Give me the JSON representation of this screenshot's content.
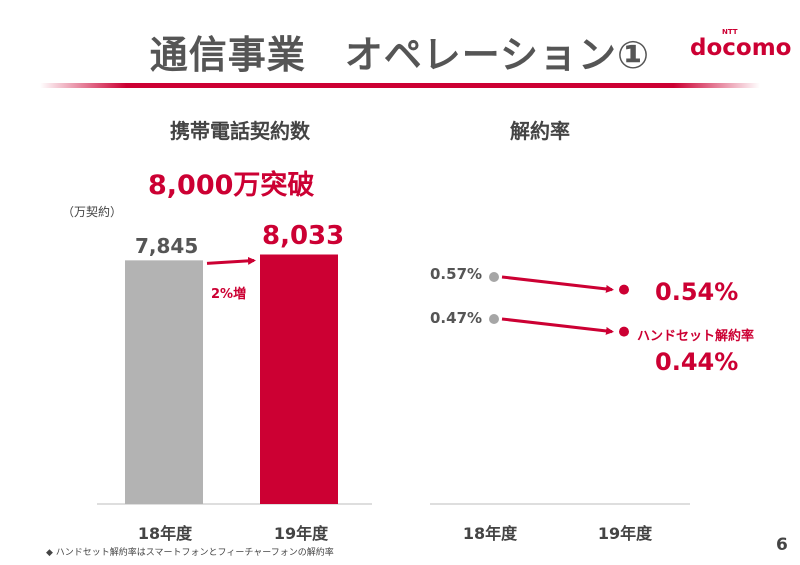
{
  "header": {
    "title": "通信事業　オペレーション①",
    "logo_brand": "docomo",
    "logo_ntt": "NTT"
  },
  "colors": {
    "accent": "#cc0033",
    "gray_bar": "#b3b3b3",
    "gray_dot": "#a6a6a6"
  },
  "left_panel": {
    "title": "携帯電話契約数",
    "highlight": "8,000万突破",
    "unit": "（万契約）",
    "growth_label": "2%増"
  },
  "right_panel": {
    "title": "解約率",
    "handset_series_label": "ハンドセット解約率"
  },
  "chart_data": [
    {
      "type": "bar",
      "title": "携帯電話契約数",
      "categories": [
        "18年度",
        "19年度"
      ],
      "values": [
        7845,
        8033
      ],
      "value_labels": [
        "7,845",
        "8,033"
      ],
      "colors": [
        "#b3b3b3",
        "#cc0033"
      ],
      "ylabel": "（万契約）"
    },
    {
      "type": "line",
      "title": "解約率",
      "categories": [
        "18年度",
        "19年度"
      ],
      "series": [
        {
          "values": [
            0.57,
            0.54
          ],
          "labels": [
            "0.57%",
            "0.54%"
          ]
        },
        {
          "name": "ハンドセット解約率",
          "values": [
            0.47,
            0.44
          ],
          "labels": [
            "0.47%",
            "0.44%"
          ]
        }
      ]
    }
  ],
  "footnote": "◆ ハンドセット解約率はスマートフォンとフィーチャーフォンの解約率",
  "page_number": "6"
}
